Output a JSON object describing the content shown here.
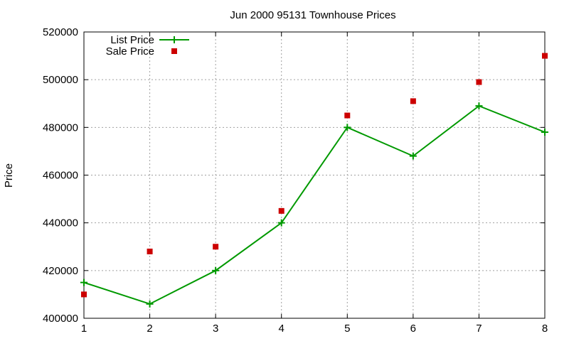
{
  "chart_data": {
    "type": "line",
    "title": "Jun 2000 95131 Townhouse Prices",
    "xlabel": "",
    "ylabel": "Price",
    "x": [
      1,
      2,
      3,
      4,
      5,
      6,
      7,
      8
    ],
    "xlim": [
      1,
      8
    ],
    "ylim": [
      400000,
      520000
    ],
    "xticks": [
      1,
      2,
      3,
      4,
      5,
      6,
      7,
      8
    ],
    "yticks": [
      400000,
      420000,
      440000,
      460000,
      480000,
      500000,
      520000
    ],
    "grid": true,
    "legend_position": "top-left",
    "series": [
      {
        "name": "List Price",
        "style": "line-with-plus-markers",
        "color": "#009900",
        "values": [
          415000,
          406000,
          420000,
          440000,
          480000,
          468000,
          489000,
          478000
        ]
      },
      {
        "name": "Sale Price",
        "style": "square-markers",
        "color": "#cc0000",
        "values": [
          410000,
          428000,
          430000,
          445000,
          485000,
          491000,
          499000,
          510000
        ]
      }
    ]
  }
}
